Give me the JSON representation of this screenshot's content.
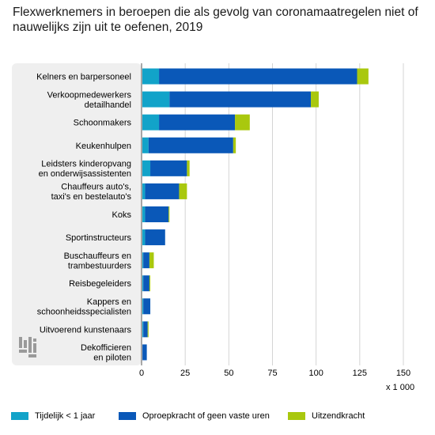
{
  "title": "Flexwerknemers in beroepen die als gevolg van coronamaatregelen niet of nauwelijks zijn uit te oefenen, 2019",
  "unit_label": "x 1 000",
  "colors": {
    "tijdelijk": "#12a3c9",
    "oproep": "#0a58b8",
    "uitzend": "#a9c80e",
    "panel": "#efefef",
    "grid": "#d4d4d4"
  },
  "chart_data": {
    "type": "bar",
    "orientation": "horizontal",
    "stacked": true,
    "categories": [
      [
        "Kelners en barpersoneel"
      ],
      [
        "Verkoopmedewerkers",
        "detailhandel"
      ],
      [
        "Schoonmakers"
      ],
      [
        "Keukenhulpen"
      ],
      [
        "Leidsters kinderopvang",
        "en onderwijsassistenten"
      ],
      [
        "Chauffeurs auto's,",
        "taxi's en bestelauto's"
      ],
      [
        "Koks"
      ],
      [
        "Sportinstructeurs"
      ],
      [
        "Buschauffeurs en",
        "trambestuurders"
      ],
      [
        "Reisbegeleiders"
      ],
      [
        "Kappers en",
        "schoonheidsspecialisten"
      ],
      [
        "Uitvoerend kunstenaars"
      ],
      [
        "Dekofficieren",
        "en piloten"
      ]
    ],
    "series": [
      {
        "name": "Tijdelijk < 1 jaar",
        "color": "#12a3c9",
        "values": [
          10,
          16,
          10,
          4,
          5,
          2,
          2,
          2,
          1,
          1,
          1,
          1,
          0.5
        ]
      },
      {
        "name": "Oproepkracht of geen vaste uren",
        "color": "#0a58b8",
        "values": [
          113.5,
          81,
          43.5,
          48.5,
          21,
          19.5,
          13.5,
          11.5,
          3.5,
          3.5,
          4,
          2.5,
          2.5
        ]
      },
      {
        "name": "Uitzendkracht",
        "color": "#a9c80e",
        "values": [
          6.5,
          4.5,
          8.5,
          1.5,
          1.5,
          4.5,
          0.5,
          0,
          2.5,
          0.5,
          0,
          0.5,
          0
        ]
      }
    ],
    "xlim": [
      0,
      150
    ],
    "xticks": [
      0,
      25,
      50,
      75,
      100,
      125,
      150
    ],
    "grid": true,
    "legend_position": "bottom"
  }
}
